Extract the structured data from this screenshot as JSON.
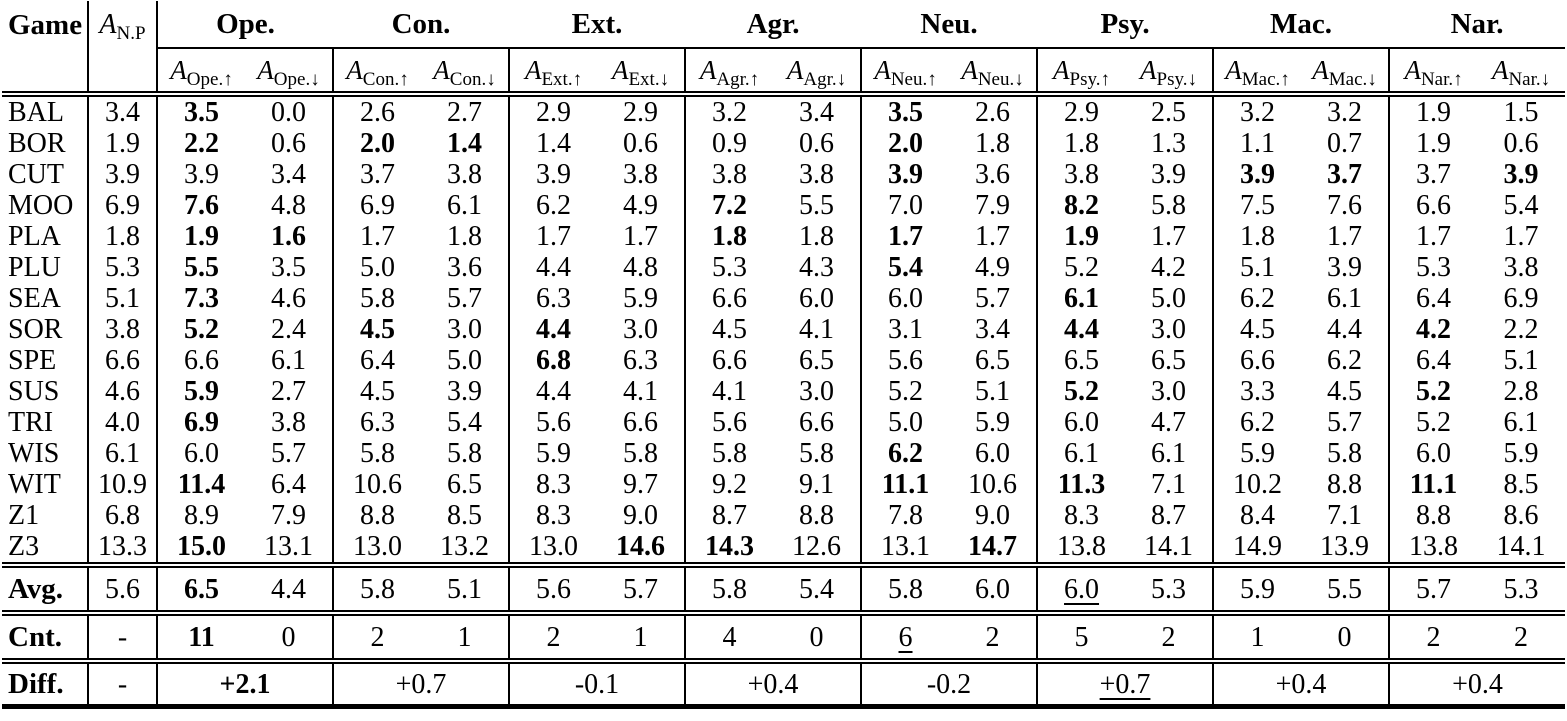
{
  "header": {
    "corner": "Game",
    "np_base": "A",
    "np_sub": "N.P",
    "sub_base": "A",
    "groups": [
      "Ope.",
      "Con.",
      "Ext.",
      "Agr.",
      "Neu.",
      "Psy.",
      "Mac.",
      "Nar."
    ],
    "sub_labels": [
      [
        "Ope.↑",
        "Ope.↓"
      ],
      [
        "Con.↑",
        "Con.↓"
      ],
      [
        "Ext.↑",
        "Ext.↓"
      ],
      [
        "Agr.↑",
        "Agr.↓"
      ],
      [
        "Neu.↑",
        "Neu.↓"
      ],
      [
        "Psy.↑",
        "Psy.↓"
      ],
      [
        "Mac.↑",
        "Mac.↓"
      ],
      [
        "Nar.↑",
        "Nar.↓"
      ]
    ]
  },
  "rows": [
    {
      "game": "BAL",
      "np": "3.4",
      "cells": [
        "3.5",
        "0.0",
        "2.6",
        "2.7",
        "2.9",
        "2.9",
        "3.2",
        "3.4",
        "3.5",
        "2.6",
        "2.9",
        "2.5",
        "3.2",
        "3.2",
        "1.9",
        "1.5"
      ],
      "bold": [
        0,
        8
      ],
      "ul": []
    },
    {
      "game": "BOR",
      "np": "1.9",
      "cells": [
        "2.2",
        "0.6",
        "2.0",
        "1.4",
        "1.4",
        "0.6",
        "0.9",
        "0.6",
        "2.0",
        "1.8",
        "1.8",
        "1.3",
        "1.1",
        "0.7",
        "1.9",
        "0.6"
      ],
      "bold": [
        0,
        2,
        3,
        8
      ],
      "ul": []
    },
    {
      "game": "CUT",
      "np": "3.9",
      "cells": [
        "3.9",
        "3.4",
        "3.7",
        "3.8",
        "3.9",
        "3.8",
        "3.8",
        "3.8",
        "3.9",
        "3.6",
        "3.8",
        "3.9",
        "3.9",
        "3.7",
        "3.7",
        "3.9"
      ],
      "bold": [
        8,
        12,
        13,
        15
      ],
      "ul": []
    },
    {
      "game": "MOO",
      "np": "6.9",
      "cells": [
        "7.6",
        "4.8",
        "6.9",
        "6.1",
        "6.2",
        "4.9",
        "7.2",
        "5.5",
        "7.0",
        "7.9",
        "8.2",
        "5.8",
        "7.5",
        "7.6",
        "6.6",
        "5.4"
      ],
      "bold": [
        0,
        6,
        10
      ],
      "ul": []
    },
    {
      "game": "PLA",
      "np": "1.8",
      "cells": [
        "1.9",
        "1.6",
        "1.7",
        "1.8",
        "1.7",
        "1.7",
        "1.8",
        "1.8",
        "1.7",
        "1.7",
        "1.9",
        "1.7",
        "1.8",
        "1.7",
        "1.7",
        "1.7"
      ],
      "bold": [
        0,
        1,
        6,
        8,
        10
      ],
      "ul": []
    },
    {
      "game": "PLU",
      "np": "5.3",
      "cells": [
        "5.5",
        "3.5",
        "5.0",
        "3.6",
        "4.4",
        "4.8",
        "5.3",
        "4.3",
        "5.4",
        "4.9",
        "5.2",
        "4.2",
        "5.1",
        "3.9",
        "5.3",
        "3.8"
      ],
      "bold": [
        0,
        8
      ],
      "ul": []
    },
    {
      "game": "SEA",
      "np": "5.1",
      "cells": [
        "7.3",
        "4.6",
        "5.8",
        "5.7",
        "6.3",
        "5.9",
        "6.6",
        "6.0",
        "6.0",
        "5.7",
        "6.1",
        "5.0",
        "6.2",
        "6.1",
        "6.4",
        "6.9"
      ],
      "bold": [
        0,
        10
      ],
      "ul": []
    },
    {
      "game": "SOR",
      "np": "3.8",
      "cells": [
        "5.2",
        "2.4",
        "4.5",
        "3.0",
        "4.4",
        "3.0",
        "4.5",
        "4.1",
        "3.1",
        "3.4",
        "4.4",
        "3.0",
        "4.5",
        "4.4",
        "4.2",
        "2.2"
      ],
      "bold": [
        0,
        2,
        4,
        10,
        14
      ],
      "ul": []
    },
    {
      "game": "SPE",
      "np": "6.6",
      "cells": [
        "6.6",
        "6.1",
        "6.4",
        "5.0",
        "6.8",
        "6.3",
        "6.6",
        "6.5",
        "5.6",
        "6.5",
        "6.5",
        "6.5",
        "6.6",
        "6.2",
        "6.4",
        "5.1"
      ],
      "bold": [
        4
      ],
      "ul": []
    },
    {
      "game": "SUS",
      "np": "4.6",
      "cells": [
        "5.9",
        "2.7",
        "4.5",
        "3.9",
        "4.4",
        "4.1",
        "4.1",
        "3.0",
        "5.2",
        "5.1",
        "5.2",
        "3.0",
        "3.3",
        "4.5",
        "5.2",
        "2.8"
      ],
      "bold": [
        0,
        10,
        14
      ],
      "ul": []
    },
    {
      "game": "TRI",
      "np": "4.0",
      "cells": [
        "6.9",
        "3.8",
        "6.3",
        "5.4",
        "5.6",
        "6.6",
        "5.6",
        "6.6",
        "5.0",
        "5.9",
        "6.0",
        "4.7",
        "6.2",
        "5.7",
        "5.2",
        "6.1"
      ],
      "bold": [
        0
      ],
      "ul": []
    },
    {
      "game": "WIS",
      "np": "6.1",
      "cells": [
        "6.0",
        "5.7",
        "5.8",
        "5.8",
        "5.9",
        "5.8",
        "5.8",
        "5.8",
        "6.2",
        "6.0",
        "6.1",
        "6.1",
        "5.9",
        "5.8",
        "6.0",
        "5.9"
      ],
      "bold": [
        8
      ],
      "ul": []
    },
    {
      "game": "WIT",
      "np": "10.9",
      "cells": [
        "11.4",
        "6.4",
        "10.6",
        "6.5",
        "8.3",
        "9.7",
        "9.2",
        "9.1",
        "11.1",
        "10.6",
        "11.3",
        "7.1",
        "10.2",
        "8.8",
        "11.1",
        "8.5"
      ],
      "bold": [
        0,
        8,
        10,
        14
      ],
      "ul": []
    },
    {
      "game": "Z1",
      "np": "6.8",
      "cells": [
        "8.9",
        "7.9",
        "8.8",
        "8.5",
        "8.3",
        "9.0",
        "8.7",
        "8.8",
        "7.8",
        "9.0",
        "8.3",
        "8.7",
        "8.4",
        "7.1",
        "8.8",
        "8.6"
      ],
      "bold": [],
      "ul": []
    },
    {
      "game": "Z3",
      "np": "13.3",
      "cells": [
        "15.0",
        "13.1",
        "13.0",
        "13.2",
        "13.0",
        "14.6",
        "14.3",
        "12.6",
        "13.1",
        "14.7",
        "13.8",
        "14.1",
        "14.9",
        "13.9",
        "13.8",
        "14.1"
      ],
      "bold": [
        0,
        5,
        6,
        9
      ],
      "ul": []
    }
  ],
  "summary": {
    "avg": {
      "label": "Avg.",
      "np": "5.6",
      "cells": [
        "6.5",
        "4.4",
        "5.8",
        "5.1",
        "5.6",
        "5.7",
        "5.8",
        "5.4",
        "5.8",
        "6.0",
        "6.0",
        "5.3",
        "5.9",
        "5.5",
        "5.7",
        "5.3"
      ],
      "bold": [
        0
      ],
      "ul": [
        10
      ]
    },
    "cnt": {
      "label": "Cnt.",
      "np": "-",
      "cells": [
        "11",
        "0",
        "2",
        "1",
        "2",
        "1",
        "4",
        "0",
        "6",
        "2",
        "5",
        "2",
        "1",
        "0",
        "2",
        "2"
      ],
      "bold": [
        0
      ],
      "ul": [
        8
      ]
    },
    "diff": {
      "label": "Diff.",
      "np": "-",
      "cells": [
        "+2.1",
        "+0.7",
        "-0.1",
        "+0.4",
        "-0.2",
        "+0.7",
        "+0.4",
        "+0.4"
      ],
      "bold": [
        0
      ],
      "ul": [
        5
      ]
    }
  }
}
